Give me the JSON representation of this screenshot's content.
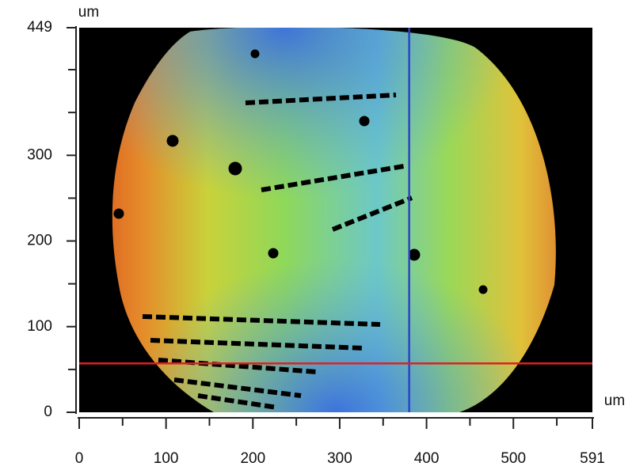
{
  "chart_data": {
    "type": "heatmap",
    "xlabel": "um",
    "ylabel": "um",
    "xlim": [
      0,
      591
    ],
    "ylim": [
      0,
      449
    ],
    "xticks": [
      0,
      100,
      200,
      300,
      400,
      500,
      591
    ],
    "yticks": [
      0,
      100,
      200,
      300,
      449
    ],
    "xminor": [
      50,
      150,
      250,
      350,
      450,
      550
    ],
    "yminor": [
      50,
      150,
      250,
      350,
      400
    ],
    "background": "#000000",
    "cursors": [
      {
        "axis": "x",
        "value": 380,
        "color": "#2a44c8"
      },
      {
        "axis": "y",
        "value": 57,
        "color": "#e02020"
      }
    ]
  }
}
